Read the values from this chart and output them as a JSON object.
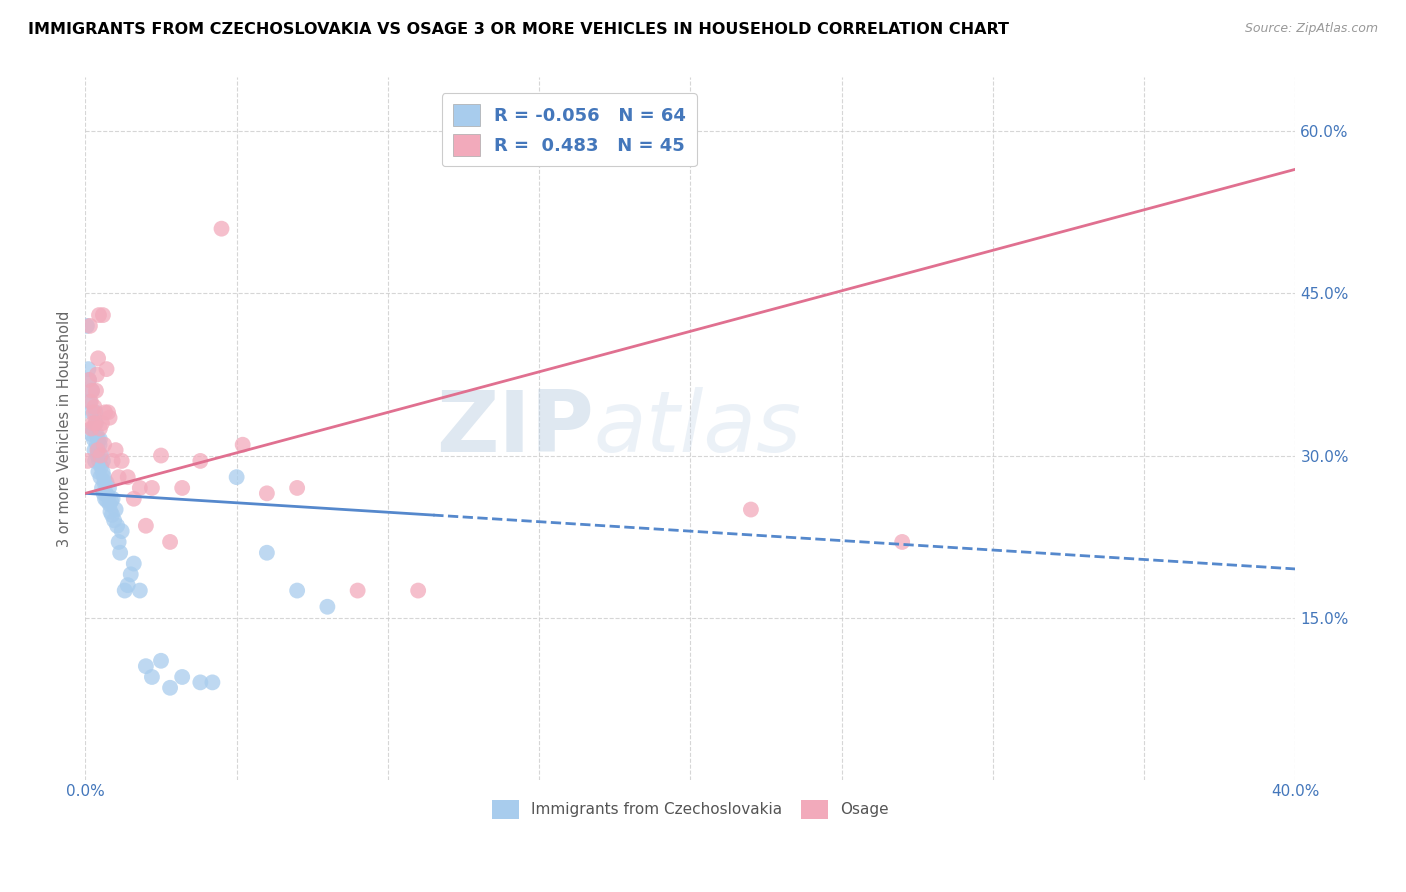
{
  "title": "IMMIGRANTS FROM CZECHOSLOVAKIA VS OSAGE 3 OR MORE VEHICLES IN HOUSEHOLD CORRELATION CHART",
  "source": "Source: ZipAtlas.com",
  "ylabel": "3 or more Vehicles in Household",
  "legend_blue_R": "-0.056",
  "legend_blue_N": "64",
  "legend_pink_R": " 0.483",
  "legend_pink_N": "45",
  "legend_labels": [
    "Immigrants from Czechoslovakia",
    "Osage"
  ],
  "blue_color": "#A8CCED",
  "pink_color": "#F2AABB",
  "blue_line_color": "#5588CC",
  "pink_line_color": "#E07090",
  "blue_scatter_x": [
    0.0005,
    0.001,
    0.0012,
    0.0015,
    0.0018,
    0.002,
    0.0022,
    0.0025,
    0.0028,
    0.003,
    0.0032,
    0.0033,
    0.0035,
    0.0036,
    0.0038,
    0.004,
    0.0041,
    0.0042,
    0.0043,
    0.0045,
    0.0047,
    0.0048,
    0.005,
    0.0052,
    0.0053,
    0.0055,
    0.0057,
    0.0058,
    0.006,
    0.0062,
    0.0063,
    0.0065,
    0.0068,
    0.007,
    0.0072,
    0.0075,
    0.0078,
    0.008,
    0.0083,
    0.0085,
    0.0088,
    0.009,
    0.0095,
    0.01,
    0.0105,
    0.011,
    0.0115,
    0.012,
    0.013,
    0.014,
    0.015,
    0.016,
    0.018,
    0.02,
    0.022,
    0.025,
    0.028,
    0.032,
    0.038,
    0.042,
    0.05,
    0.06,
    0.07,
    0.08
  ],
  "blue_scatter_y": [
    0.42,
    0.38,
    0.37,
    0.35,
    0.32,
    0.34,
    0.36,
    0.325,
    0.315,
    0.305,
    0.295,
    0.34,
    0.33,
    0.32,
    0.31,
    0.3,
    0.305,
    0.315,
    0.285,
    0.295,
    0.31,
    0.315,
    0.28,
    0.29,
    0.3,
    0.27,
    0.285,
    0.295,
    0.265,
    0.28,
    0.275,
    0.26,
    0.265,
    0.275,
    0.258,
    0.262,
    0.27,
    0.255,
    0.248,
    0.258,
    0.245,
    0.26,
    0.24,
    0.25,
    0.235,
    0.22,
    0.21,
    0.23,
    0.175,
    0.18,
    0.19,
    0.2,
    0.175,
    0.105,
    0.095,
    0.11,
    0.085,
    0.095,
    0.09,
    0.09,
    0.28,
    0.21,
    0.175,
    0.16
  ],
  "pink_scatter_x": [
    0.0008,
    0.0012,
    0.0015,
    0.0018,
    0.002,
    0.0022,
    0.0025,
    0.0028,
    0.003,
    0.0033,
    0.0035,
    0.0038,
    0.004,
    0.0042,
    0.0045,
    0.0048,
    0.005,
    0.0055,
    0.0058,
    0.0062,
    0.0065,
    0.007,
    0.0075,
    0.008,
    0.009,
    0.01,
    0.011,
    0.012,
    0.014,
    0.016,
    0.018,
    0.02,
    0.022,
    0.025,
    0.028,
    0.032,
    0.038,
    0.045,
    0.052,
    0.06,
    0.07,
    0.09,
    0.11,
    0.22,
    0.27
  ],
  "pink_scatter_y": [
    0.295,
    0.37,
    0.42,
    0.35,
    0.325,
    0.36,
    0.33,
    0.34,
    0.345,
    0.33,
    0.36,
    0.375,
    0.305,
    0.39,
    0.43,
    0.325,
    0.3,
    0.33,
    0.43,
    0.31,
    0.34,
    0.38,
    0.34,
    0.335,
    0.295,
    0.305,
    0.28,
    0.295,
    0.28,
    0.26,
    0.27,
    0.235,
    0.27,
    0.3,
    0.22,
    0.27,
    0.295,
    0.51,
    0.31,
    0.265,
    0.27,
    0.175,
    0.175,
    0.25,
    0.22
  ],
  "xlim": [
    0.0,
    0.4
  ],
  "ylim": [
    0.0,
    0.65
  ],
  "y_tick_positions": [
    0.15,
    0.3,
    0.45,
    0.6
  ],
  "y_tick_labels": [
    "15.0%",
    "30.0%",
    "45.0%",
    "60.0%"
  ],
  "x_tick_positions": [
    0.0,
    0.05,
    0.1,
    0.15,
    0.2,
    0.25,
    0.3,
    0.35,
    0.4
  ],
  "x_tick_labels": [
    "0.0%",
    "",
    "",
    "",
    "",
    "",
    "",
    "",
    "40.0%"
  ],
  "blue_line_x0": 0.0,
  "blue_line_x_solid_end": 0.115,
  "blue_line_x1": 0.4,
  "blue_line_y0": 0.265,
  "blue_line_y1": 0.195,
  "pink_line_x0": 0.0,
  "pink_line_x1": 0.4,
  "pink_line_y0": 0.265,
  "pink_line_y1": 0.565,
  "watermark_zip": "ZIP",
  "watermark_atlas": "atlas"
}
